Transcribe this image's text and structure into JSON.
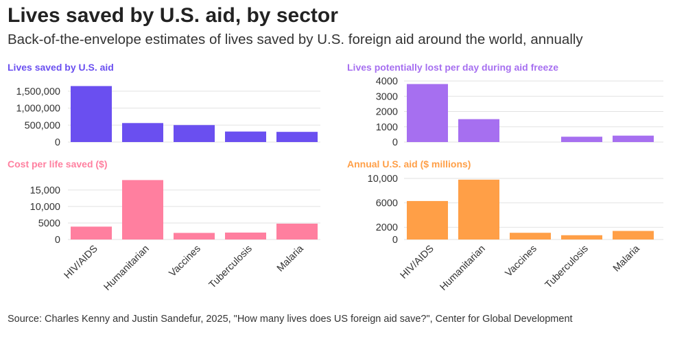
{
  "title": "Lives saved by U.S. aid, by sector",
  "subtitle": "Back-of-the-envelope estimates of lives saved by U.S. foreign aid around the world, annually",
  "source": "Source: Charles Kenny and Justin Sandefur, 2025, \"How many lives does US foreign aid save?\", Center for Global Development",
  "chart_data": [
    {
      "type": "bar",
      "title": "Lives saved by U.S. aid",
      "color": "#6a4ff0",
      "categories": [
        "HIV/AIDS",
        "Humanitarian",
        "Vaccines",
        "Tuberculosis",
        "Malaria"
      ],
      "values": [
        1650000,
        560000,
        500000,
        310000,
        300000
      ],
      "ylim": [
        0,
        1800000
      ],
      "yticks": [
        0,
        500000,
        1000000,
        1500000
      ],
      "ytick_labels": [
        "0",
        "500,000",
        "1,000,000",
        "1,500,000"
      ],
      "xlabel": "",
      "ylabel": ""
    },
    {
      "type": "bar",
      "title": "Lives potentially lost per day during aid freeze",
      "color": "#a66ff0",
      "categories": [
        "HIV/AIDS",
        "Humanitarian",
        "Vaccines",
        "Tuberculosis",
        "Malaria"
      ],
      "values": [
        3800,
        1500,
        0,
        350,
        420
      ],
      "ylim": [
        0,
        4000
      ],
      "yticks": [
        0,
        1000,
        2000,
        3000,
        4000
      ],
      "ytick_labels": [
        "0",
        "1000",
        "2000",
        "3000",
        "4000"
      ],
      "xlabel": "",
      "ylabel": ""
    },
    {
      "type": "bar",
      "title": "Cost per life saved ($)",
      "color": "#ff7f9f",
      "categories": [
        "HIV/AIDS",
        "Humanitarian",
        "Vaccines",
        "Tuberculosis",
        "Malaria"
      ],
      "values": [
        3900,
        18000,
        2000,
        2100,
        4800
      ],
      "ylim": [
        0,
        18500
      ],
      "yticks": [
        0,
        5000,
        10000,
        15000
      ],
      "ytick_labels": [
        "0",
        "5000",
        "10,000",
        "15,000"
      ],
      "xlabel": "",
      "ylabel": ""
    },
    {
      "type": "bar",
      "title": "Annual U.S. aid ($ millions)",
      "color": "#ff9f47",
      "categories": [
        "HIV/AIDS",
        "Humanitarian",
        "Vaccines",
        "Tuberculosis",
        "Malaria"
      ],
      "values": [
        6300,
        9800,
        1100,
        700,
        1400
      ],
      "ylim": [
        0,
        10000
      ],
      "yticks": [
        0,
        2000,
        6000,
        10000
      ],
      "ytick_labels": [
        "0",
        "2000",
        "6000",
        "10,000"
      ],
      "xlabel": "",
      "ylabel": ""
    }
  ]
}
